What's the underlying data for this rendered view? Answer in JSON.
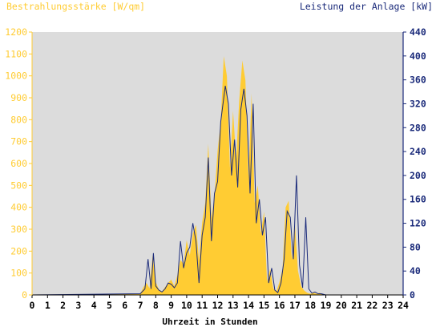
{
  "colors": {
    "irradiance": "#ffcc33",
    "power": "#1a2a7a",
    "plot_bg": "#dcdcdc",
    "irradiance_text": "#ffcc33",
    "power_text": "#1a2a7a"
  },
  "chart_data": {
    "type": "area",
    "left_axis_title": "Bestrahlungsstärke [W/qm]",
    "right_axis_title": "Leistung der Anlage [kW]",
    "xlabel": "Uhrzeit in Stunden",
    "xlim": [
      0,
      24
    ],
    "ylim_left": [
      0,
      1200
    ],
    "ylim_right": [
      0,
      440
    ],
    "x_ticks": [
      "0",
      "1",
      "2",
      "3",
      "4",
      "5",
      "6",
      "7",
      "8",
      "9",
      "10",
      "11",
      "12",
      "13",
      "14",
      "15",
      "16",
      "17",
      "18",
      "19",
      "20",
      "21",
      "22",
      "23",
      "24"
    ],
    "y_ticks_left": [
      "0",
      "100",
      "200",
      "300",
      "400",
      "500",
      "600",
      "700",
      "800",
      "900",
      "1000",
      "1100",
      "1200"
    ],
    "y_ticks_right": [
      "0",
      "40",
      "80",
      "120",
      "160",
      "200",
      "240",
      "280",
      "320",
      "360",
      "400",
      "440"
    ],
    "series": [
      {
        "name": "Bestrahlungsstärke",
        "axis": "left",
        "style": "area",
        "x": [
          0,
          7.0,
          7.2,
          7.4,
          7.6,
          7.8,
          8.0,
          8.2,
          8.4,
          8.6,
          8.8,
          9.0,
          9.2,
          9.4,
          9.6,
          9.8,
          10.0,
          10.2,
          10.4,
          10.6,
          10.8,
          11.0,
          11.2,
          11.4,
          11.6,
          11.8,
          12.0,
          12.2,
          12.4,
          12.6,
          12.8,
          13.0,
          13.2,
          13.4,
          13.6,
          13.8,
          14.0,
          14.2,
          14.4,
          14.6,
          14.8,
          15.0,
          15.2,
          15.4,
          15.6,
          15.8,
          16.0,
          16.2,
          16.4,
          16.6,
          16.8,
          17.0,
          17.2,
          17.4,
          17.6,
          17.8,
          18.0,
          18.2,
          18.4,
          18.6,
          18.8,
          19.0,
          24
        ],
        "y": [
          0,
          5,
          35,
          55,
          30,
          180,
          60,
          25,
          15,
          35,
          55,
          70,
          40,
          90,
          160,
          140,
          250,
          180,
          280,
          320,
          160,
          330,
          420,
          690,
          350,
          450,
          660,
          790,
          1090,
          1000,
          580,
          840,
          620,
          890,
          1070,
          980,
          540,
          920,
          420,
          500,
          280,
          380,
          60,
          120,
          30,
          15,
          60,
          120,
          400,
          430,
          160,
          320,
          110,
          40,
          20,
          10,
          5,
          10,
          5,
          10,
          2,
          0,
          0
        ]
      },
      {
        "name": "Leistung der Anlage",
        "axis": "right",
        "style": "line",
        "x": [
          0,
          7.0,
          7.3,
          7.5,
          7.7,
          7.85,
          8.0,
          8.2,
          8.4,
          8.6,
          8.8,
          9.0,
          9.2,
          9.4,
          9.6,
          9.8,
          10.0,
          10.2,
          10.4,
          10.6,
          10.8,
          11.0,
          11.2,
          11.4,
          11.6,
          11.8,
          12.0,
          12.2,
          12.5,
          12.7,
          12.9,
          13.1,
          13.3,
          13.5,
          13.7,
          13.9,
          14.1,
          14.3,
          14.5,
          14.7,
          14.9,
          15.1,
          15.3,
          15.5,
          15.7,
          15.9,
          16.1,
          16.3,
          16.5,
          16.7,
          16.9,
          17.1,
          17.3,
          17.5,
          17.7,
          17.9,
          18.1,
          18.3,
          18.5,
          18.7,
          19.0,
          24
        ],
        "y": [
          0,
          2,
          10,
          60,
          10,
          70,
          15,
          8,
          5,
          10,
          20,
          18,
          12,
          20,
          90,
          45,
          70,
          80,
          120,
          90,
          20,
          100,
          130,
          230,
          90,
          170,
          190,
          290,
          350,
          320,
          200,
          260,
          180,
          310,
          345,
          300,
          170,
          320,
          120,
          160,
          100,
          130,
          20,
          45,
          8,
          4,
          20,
          60,
          140,
          130,
          60,
          200,
          50,
          12,
          130,
          10,
          3,
          5,
          2,
          2,
          0,
          0
        ]
      }
    ],
    "grid": false,
    "legend": "none"
  }
}
